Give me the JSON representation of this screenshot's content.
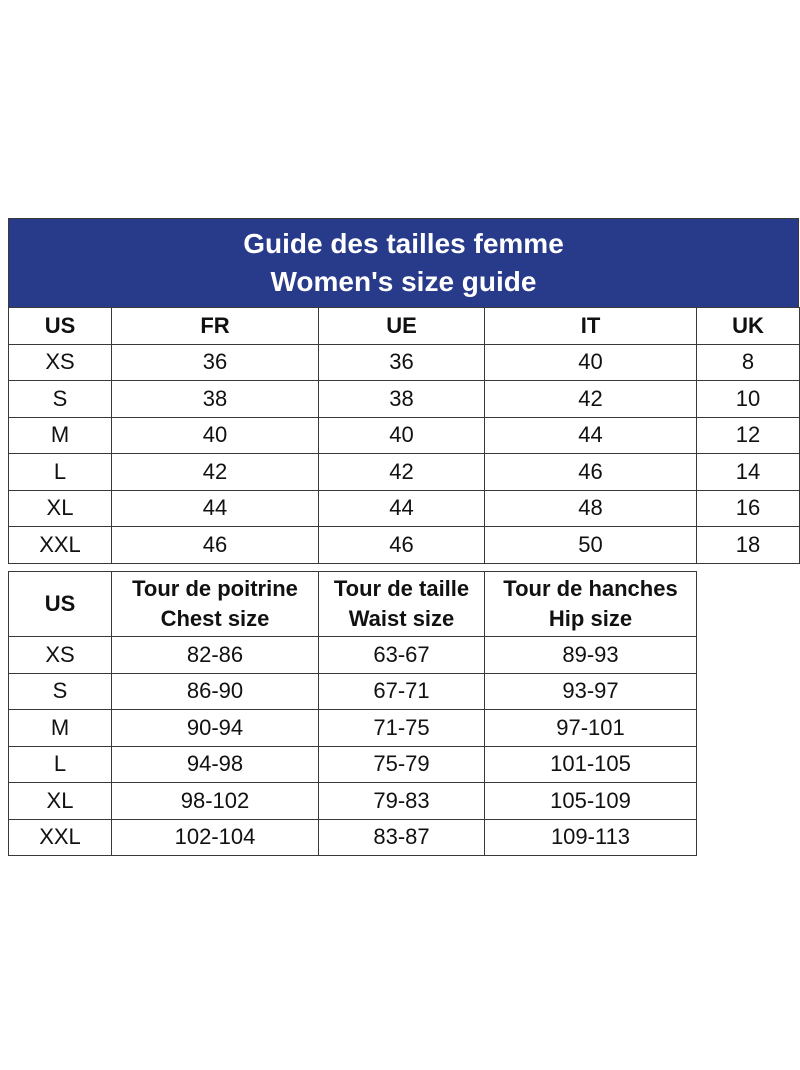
{
  "title_fr": "Guide des tailles femme",
  "title_en": "Women's size guide",
  "sizes": {
    "header": [
      "US",
      "FR",
      "UE",
      "IT",
      "UK"
    ],
    "rows": [
      [
        "XS",
        36,
        36,
        40,
        8
      ],
      [
        "S",
        38,
        38,
        42,
        10
      ],
      [
        "M",
        40,
        40,
        44,
        12
      ],
      [
        "L",
        42,
        42,
        46,
        14
      ],
      [
        "XL",
        44,
        44,
        48,
        16
      ],
      [
        "XXL",
        46,
        46,
        50,
        18
      ]
    ]
  },
  "measures": {
    "header": [
      [
        "US"
      ],
      [
        "Tour de poitrine",
        "Chest size"
      ],
      [
        "Tour de taille",
        "Waist size"
      ],
      [
        "Tour de hanches",
        "Hip size"
      ]
    ],
    "rows": [
      [
        "XS",
        "82-86",
        "63-67",
        "89-93"
      ],
      [
        "S",
        "86-90",
        "67-71",
        "93-97"
      ],
      [
        "M",
        "90-94",
        "71-75",
        "97-101"
      ],
      [
        "L",
        "94-98",
        "75-79",
        "101-105"
      ],
      [
        "XL",
        "98-102",
        "79-83",
        "105-109"
      ],
      [
        "XXL",
        "102-104",
        "83-87",
        "109-113"
      ]
    ]
  }
}
